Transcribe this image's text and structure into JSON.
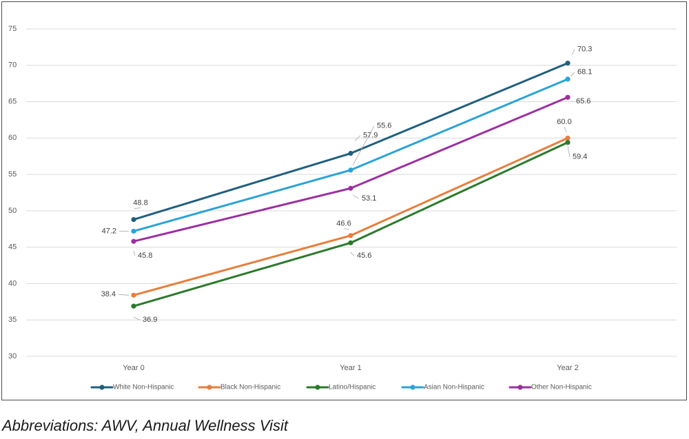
{
  "caption": "Abbreviations: AWV, Annual Wellness Visit",
  "chart_data": {
    "type": "line",
    "title": "",
    "xlabel": "",
    "ylabel": "",
    "categories": [
      "Year 0",
      "Year 1",
      "Year 2"
    ],
    "ylim": [
      30,
      75
    ],
    "yticks": [
      "75",
      "70",
      "65",
      "60",
      "55",
      "50",
      "45",
      "40",
      "35",
      "30"
    ],
    "grid": true,
    "legend_position": "bottom",
    "series": [
      {
        "name": "White Non-Hispanic",
        "color": "#1f5f7f",
        "values": [
          48.8,
          57.9,
          70.3
        ],
        "labels": [
          "48.8",
          "57.9",
          "70.3"
        ]
      },
      {
        "name": "Black Non-Hispanic",
        "color": "#e67e3c",
        "values": [
          38.4,
          46.6,
          60.0
        ],
        "labels": [
          "38.4",
          "46.6",
          "60.0"
        ]
      },
      {
        "name": "Latino/Hispanic",
        "color": "#2a7a2a",
        "values": [
          36.9,
          45.6,
          59.4
        ],
        "labels": [
          "36.9",
          "45.6",
          "59.4"
        ]
      },
      {
        "name": "Asian Non-Hispanic",
        "color": "#2aa3d6",
        "values": [
          47.2,
          55.6,
          68.1
        ],
        "labels": [
          "47.2",
          "55.6",
          "68.1"
        ]
      },
      {
        "name": "Other Non-Hispanic",
        "color": "#9c2fa0",
        "values": [
          45.8,
          53.1,
          65.6
        ],
        "labels": [
          "45.8",
          "53.1",
          "65.6"
        ]
      }
    ]
  }
}
